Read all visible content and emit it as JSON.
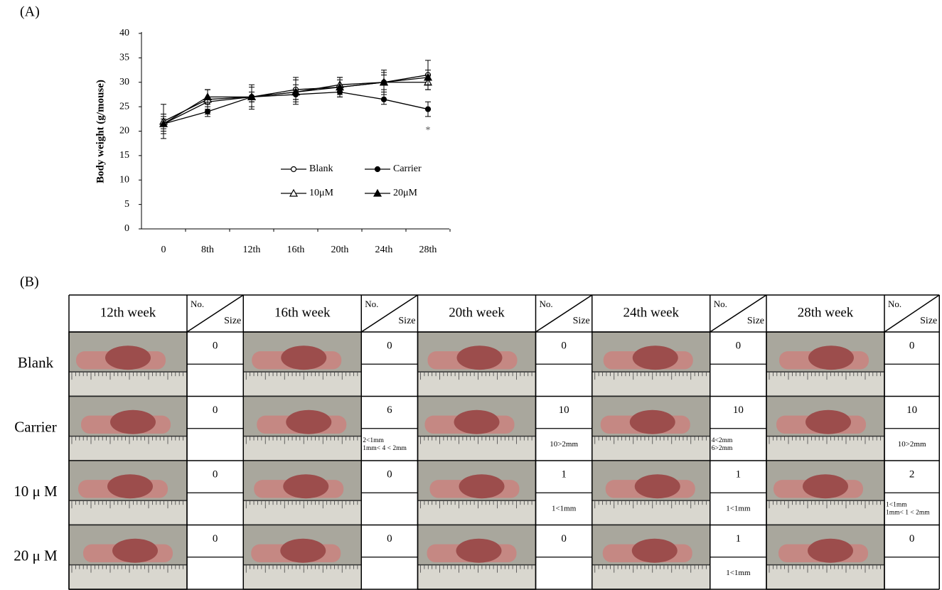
{
  "panel_a_label": "(A)",
  "chart_data": {
    "type": "line",
    "y_label": "Body weight (g/mouse)",
    "categories": [
      "0",
      "8th",
      "12th",
      "16th",
      "20th",
      "24th",
      "28th"
    ],
    "ylim": [
      0,
      40
    ],
    "yticks": [
      0,
      5,
      10,
      15,
      20,
      25,
      30,
      35,
      40
    ],
    "grid": false,
    "legend": "lower-right",
    "series": [
      {
        "name": "Blank",
        "color": "#000000",
        "marker": "circle-open",
        "values": [
          21.5,
          26,
          27,
          28.5,
          29,
          30,
          31.5
        ],
        "errors": [
          2,
          2.5,
          2.5,
          2.5,
          2,
          2.5,
          3
        ]
      },
      {
        "name": "Carrier",
        "color": "#000000",
        "marker": "circle-filled",
        "values": [
          21.5,
          24,
          27,
          27.5,
          28,
          26.5,
          24.5
        ],
        "errors": [
          1.5,
          1,
          1,
          1,
          1,
          1,
          1.5
        ]
      },
      {
        "name": "10μM",
        "color": "#000000",
        "marker": "triangle-open",
        "values": [
          22,
          26.5,
          27,
          28,
          29.5,
          30,
          30
        ],
        "errors": [
          3.5,
          2,
          2,
          2.5,
          1.5,
          2,
          1.5
        ]
      },
      {
        "name": "20μM",
        "color": "#000000",
        "marker": "triangle-filled",
        "values": [
          21.5,
          27,
          27,
          28,
          29,
          30,
          31
        ],
        "errors": [
          1,
          1.5,
          1,
          1.5,
          1.5,
          1.5,
          1.5
        ]
      }
    ],
    "annotations": [
      {
        "text": "*",
        "series": 1,
        "category": 6
      }
    ]
  },
  "panel_b_label": "(B)",
  "table": {
    "columns": [
      {
        "week": "12th week",
        "no": "No.",
        "size": "Size"
      },
      {
        "week": "16th week",
        "no": "No.",
        "size": "Size"
      },
      {
        "week": "20th week",
        "no": "No.",
        "size": "Size"
      },
      {
        "week": "24th week",
        "no": "No.",
        "size": "Size"
      },
      {
        "week": "28th week",
        "no": "No.",
        "size": "Size"
      }
    ],
    "rows": [
      {
        "label": "Blank",
        "cells": [
          {
            "count": 0,
            "size": null
          },
          {
            "count": 0,
            "size": null
          },
          {
            "count": 0,
            "size": null
          },
          {
            "count": 0,
            "size": null
          },
          {
            "count": 0,
            "size": null
          }
        ]
      },
      {
        "label": "Carrier",
        "cells": [
          {
            "count": 0,
            "size": null
          },
          {
            "count": 6,
            "size": [
              "2<1mm",
              "1mm< 4 < 2mm"
            ]
          },
          {
            "count": 10,
            "size": [
              "10>2mm"
            ]
          },
          {
            "count": 10,
            "size": [
              "4<2mm",
              "6>2mm"
            ]
          },
          {
            "count": 10,
            "size": [
              "10>2mm"
            ]
          }
        ]
      },
      {
        "label": "10 μ M",
        "cells": [
          {
            "count": 0,
            "size": null
          },
          {
            "count": 0,
            "size": null
          },
          {
            "count": 1,
            "size": [
              "1<1mm"
            ]
          },
          {
            "count": 1,
            "size": [
              "1<1mm"
            ]
          },
          {
            "count": 2,
            "size": [
              "1<1mm",
              "1mm< 1 < 2mm"
            ]
          }
        ]
      },
      {
        "label": "20 μ M",
        "cells": [
          {
            "count": 0,
            "size": null
          },
          {
            "count": 0,
            "size": null
          },
          {
            "count": 0,
            "size": null
          },
          {
            "count": 1,
            "size": [
              "1<1mm"
            ]
          },
          {
            "count": 0,
            "size": null
          }
        ]
      }
    ]
  }
}
